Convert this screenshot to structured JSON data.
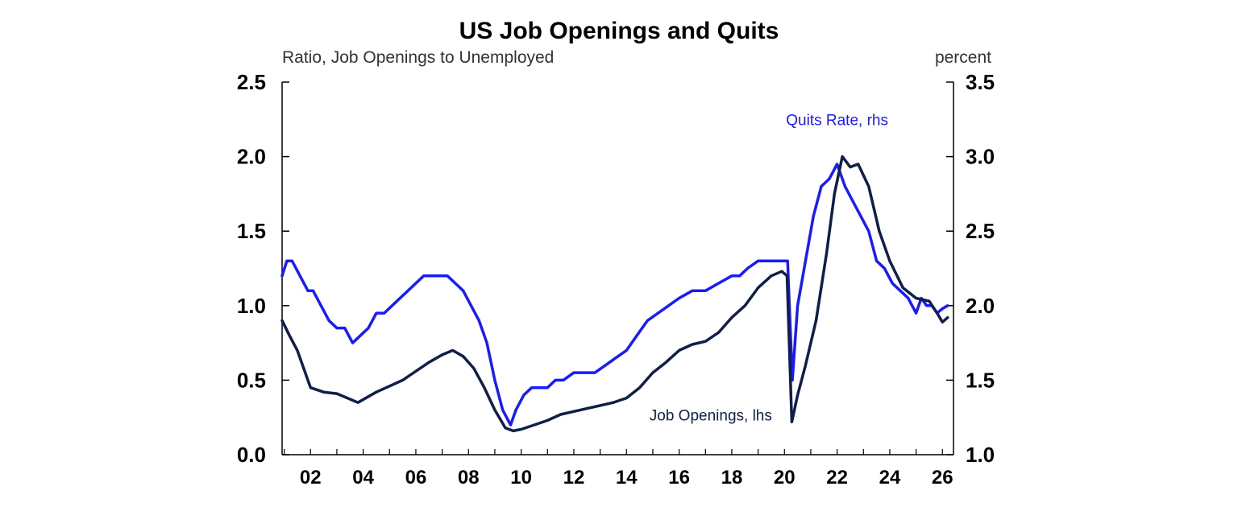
{
  "chart_data": {
    "type": "line",
    "title": "US Job Openings and Quits",
    "left_axis_label": "Ratio, Job Openings to Unemployed",
    "right_axis_label": "percent",
    "x_range": [
      2000.92,
      2026.42
    ],
    "x_tick_labels": [
      "02",
      "04",
      "06",
      "08",
      "10",
      "12",
      "14",
      "16",
      "18",
      "20",
      "22",
      "24",
      "26"
    ],
    "x_tick_years": [
      2002,
      2004,
      2006,
      2008,
      2010,
      2012,
      2014,
      2016,
      2018,
      2020,
      2022,
      2024,
      2026
    ],
    "ylim_left": [
      0.0,
      2.5
    ],
    "ylim_right": [
      1.0,
      3.5
    ],
    "y_left_ticks": [
      "0.0",
      "0.5",
      "1.0",
      "1.5",
      "2.0",
      "2.5"
    ],
    "y_right_ticks": [
      "1.0",
      "1.5",
      "2.0",
      "2.5",
      "3.0",
      "3.5"
    ],
    "grid": false,
    "legend": "inline labels",
    "series": [
      {
        "name": "Job Openings, lhs",
        "axis": "left",
        "color": "#0f1f4a",
        "x": [
          2000.92,
          2001.2,
          2001.5,
          2001.8,
          2002.0,
          2002.5,
          2003.0,
          2003.4,
          2003.8,
          2004.5,
          2005.0,
          2005.5,
          2006.0,
          2006.5,
          2007.0,
          2007.4,
          2007.8,
          2008.2,
          2008.6,
          2009.0,
          2009.4,
          2009.7,
          2010.0,
          2010.5,
          2011.0,
          2011.5,
          2012.0,
          2012.5,
          2013.0,
          2013.5,
          2014.0,
          2014.5,
          2015.0,
          2015.5,
          2016.0,
          2016.5,
          2017.0,
          2017.5,
          2018.0,
          2018.5,
          2019.0,
          2019.5,
          2019.9,
          2020.1,
          2020.28,
          2020.5,
          2020.8,
          2021.2,
          2021.6,
          2021.9,
          2022.2,
          2022.5,
          2022.8,
          2023.2,
          2023.6,
          2024.0,
          2024.5,
          2025.0,
          2025.5,
          2025.8,
          2026.0,
          2026.2
        ],
        "y": [
          0.9,
          0.8,
          0.7,
          0.55,
          0.45,
          0.42,
          0.41,
          0.38,
          0.35,
          0.42,
          0.46,
          0.5,
          0.56,
          0.62,
          0.67,
          0.7,
          0.66,
          0.58,
          0.45,
          0.3,
          0.18,
          0.16,
          0.17,
          0.2,
          0.23,
          0.27,
          0.29,
          0.31,
          0.33,
          0.35,
          0.38,
          0.45,
          0.55,
          0.62,
          0.7,
          0.74,
          0.76,
          0.82,
          0.92,
          1.0,
          1.12,
          1.2,
          1.23,
          1.2,
          0.22,
          0.4,
          0.6,
          0.9,
          1.35,
          1.75,
          2.0,
          1.93,
          1.95,
          1.8,
          1.5,
          1.3,
          1.12,
          1.05,
          1.03,
          0.95,
          0.89,
          0.92
        ]
      },
      {
        "name": "Quits Rate, rhs",
        "axis": "right",
        "color": "#1a1aff",
        "x": [
          2000.92,
          2001.1,
          2001.3,
          2001.6,
          2001.9,
          2002.1,
          2002.4,
          2002.7,
          2003.0,
          2003.3,
          2003.6,
          2003.9,
          2004.2,
          2004.5,
          2004.8,
          2005.1,
          2005.4,
          2005.7,
          2006.0,
          2006.3,
          2006.6,
          2006.9,
          2007.2,
          2007.5,
          2007.8,
          2008.1,
          2008.4,
          2008.7,
          2009.0,
          2009.3,
          2009.6,
          2009.8,
          2010.1,
          2010.4,
          2010.7,
          2011.0,
          2011.3,
          2011.6,
          2012.0,
          2012.4,
          2012.8,
          2013.2,
          2013.6,
          2014.0,
          2014.4,
          2014.8,
          2015.2,
          2015.6,
          2016.0,
          2016.5,
          2017.0,
          2017.5,
          2018.0,
          2018.3,
          2018.6,
          2019.0,
          2019.5,
          2020.0,
          2020.12,
          2020.3,
          2020.5,
          2020.8,
          2021.1,
          2021.4,
          2021.7,
          2022.0,
          2022.3,
          2022.6,
          2022.9,
          2023.2,
          2023.5,
          2023.8,
          2024.1,
          2024.4,
          2024.7,
          2025.0,
          2025.2,
          2025.4,
          2025.6,
          2025.8,
          2026.0,
          2026.2
        ],
        "y": [
          2.2,
          2.3,
          2.3,
          2.2,
          2.1,
          2.1,
          2.0,
          1.9,
          1.85,
          1.85,
          1.75,
          1.8,
          1.85,
          1.95,
          1.95,
          2.0,
          2.05,
          2.1,
          2.15,
          2.2,
          2.2,
          2.2,
          2.2,
          2.15,
          2.1,
          2.0,
          1.9,
          1.75,
          1.5,
          1.3,
          1.2,
          1.3,
          1.4,
          1.45,
          1.45,
          1.45,
          1.5,
          1.5,
          1.55,
          1.55,
          1.55,
          1.6,
          1.65,
          1.7,
          1.8,
          1.9,
          1.95,
          2.0,
          2.05,
          2.1,
          2.1,
          2.15,
          2.2,
          2.2,
          2.25,
          2.3,
          2.3,
          2.3,
          2.3,
          1.5,
          2.0,
          2.3,
          2.6,
          2.8,
          2.85,
          2.95,
          2.8,
          2.7,
          2.6,
          2.5,
          2.3,
          2.25,
          2.15,
          2.1,
          2.05,
          1.95,
          2.05,
          2.0,
          2.0,
          1.95,
          1.98,
          2.0
        ]
      }
    ],
    "annotations": [
      {
        "text": "Quits Rate, rhs",
        "x": 2022.0,
        "y_right": 3.21,
        "color": "#1a1aff"
      },
      {
        "text": "Job Openings, lhs",
        "x": 2017.2,
        "y_left": 0.23,
        "color": "#0f1f4a"
      }
    ]
  }
}
